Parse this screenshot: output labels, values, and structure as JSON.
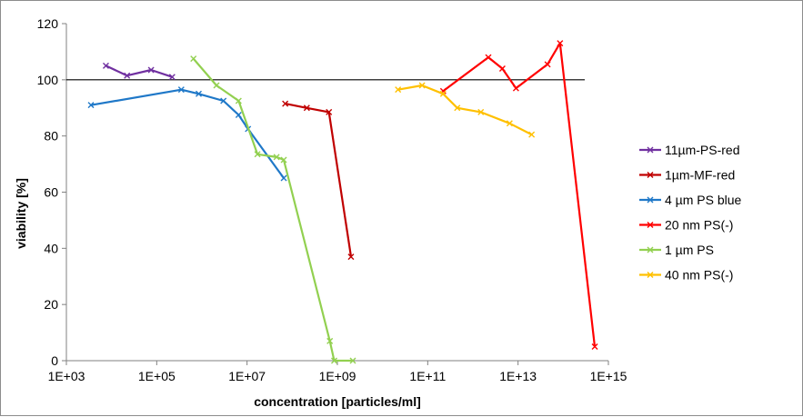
{
  "chart_data": {
    "type": "line",
    "title": "",
    "xlabel": "concentration [particles/ml]",
    "ylabel": "viability [%]",
    "x_scale": "log",
    "xlim": [
      1000.0,
      1000000000000000.0
    ],
    "ylim": [
      0,
      120
    ],
    "x_ticks": [
      1000.0,
      100000.0,
      10000000.0,
      1000000000.0,
      100000000000.0,
      10000000000000.0,
      1000000000000000.0
    ],
    "x_tick_labels": [
      "1E+03",
      "1E+05",
      "1E+07",
      "1E+09",
      "1E+11",
      "1E+13",
      "1E+15"
    ],
    "y_ticks": [
      0,
      20,
      40,
      60,
      80,
      100,
      120
    ],
    "y_tick_labels": [
      "0",
      "20",
      "40",
      "60",
      "80",
      "100",
      "120"
    ],
    "grid": false,
    "reference_line": 100,
    "legend_position": "right",
    "series": [
      {
        "name": "11µm-PS-red",
        "color": "#7030a0",
        "x": [
          7500.0,
          22000.0,
          75000.0,
          220000.0
        ],
        "y": [
          105,
          101.5,
          103.5,
          101
        ]
      },
      {
        "name": "1µm-MF-red",
        "color": "#c00000",
        "x": [
          70000000.0,
          210000000.0,
          650000000.0,
          2000000000.0
        ],
        "y": [
          91.5,
          90,
          88.5,
          37
        ]
      },
      {
        "name": "4 µm PS blue",
        "color": "#1f78c8",
        "x": [
          3500.0,
          350000.0,
          850000.0,
          3000000.0,
          6500000.0,
          10500000.0,
          65000000.0
        ],
        "y": [
          91,
          96.5,
          95,
          92.5,
          87.5,
          82.5,
          65
        ]
      },
      {
        "name": "20 nm PS(-)",
        "color": "#ff0000",
        "x": [
          220000000000.0,
          2200000000000.0,
          4500000000000.0,
          9000000000000.0,
          45000000000000.0,
          85000000000000.0,
          500000000000000.0
        ],
        "y": [
          96,
          108,
          104,
          97,
          105.5,
          113,
          5
        ]
      },
      {
        "name": "1 µm  PS",
        "color": "#92d050",
        "x": [
          650000.0,
          2100000.0,
          6500000.0,
          17000000.0,
          45000000.0,
          65000000.0,
          680000000.0,
          850000000.0,
          2200000000.0
        ],
        "y": [
          107.5,
          98,
          92.5,
          73.5,
          72.5,
          71.5,
          7,
          0,
          0
        ]
      },
      {
        "name": "40 nm PS(-)",
        "color": "#ffc000",
        "x": [
          22000000000.0,
          75000000000.0,
          220000000000.0,
          450000000000.0,
          1500000000000.0,
          6500000000000.0,
          20000000000000.0
        ],
        "y": [
          96.5,
          98,
          95,
          90,
          88.5,
          84.5,
          80.5
        ]
      }
    ]
  }
}
